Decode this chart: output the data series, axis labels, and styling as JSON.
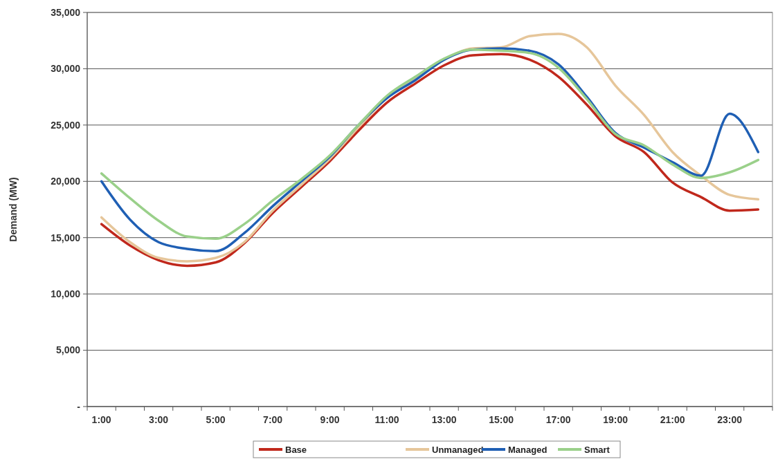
{
  "chart_data": {
    "type": "line",
    "ylabel": "Demand (MW)",
    "categories": [
      "1:00",
      null,
      "3:00",
      null,
      "5:00",
      null,
      "7:00",
      null,
      "9:00",
      null,
      "11:00",
      null,
      "13:00",
      null,
      "15:00",
      null,
      "17:00",
      null,
      "19:00",
      null,
      "21:00",
      null,
      "23:00",
      null
    ],
    "ylim": [
      0,
      35000
    ],
    "yticks": [
      {
        "value": 0,
        "label": "-"
      },
      {
        "value": 5000,
        "label": "5,000"
      },
      {
        "value": 10000,
        "label": "10,000"
      },
      {
        "value": 15000,
        "label": "15,000"
      },
      {
        "value": 20000,
        "label": "20,000"
      },
      {
        "value": 25000,
        "label": "25,000"
      },
      {
        "value": 30000,
        "label": "30,000"
      },
      {
        "value": 35000,
        "label": "35,000"
      }
    ],
    "grid": "y",
    "legend": "bottom",
    "marker": "none",
    "line_style": "solid",
    "series": [
      {
        "name": "Base",
        "color": "#c0281c",
        "values": [
          16200,
          14300,
          13000,
          12500,
          12800,
          14500,
          17200,
          19500,
          21800,
          24500,
          27000,
          28700,
          30300,
          31200,
          31300,
          30800,
          29300,
          26800,
          24000,
          22600,
          19900,
          18600,
          17400,
          17500
        ]
      },
      {
        "name": "Unmanaged",
        "color": "#e6c69a",
        "values": [
          16800,
          14600,
          13200,
          12900,
          13200,
          14600,
          17400,
          19700,
          22000,
          24800,
          27400,
          29100,
          30800,
          31800,
          31900,
          32900,
          33100,
          31900,
          28500,
          25900,
          22600,
          20500,
          18800,
          18400
        ]
      },
      {
        "name": "Managed",
        "color": "#1f5fb4",
        "values": [
          20000,
          16600,
          14600,
          14000,
          13800,
          15400,
          17800,
          20000,
          22200,
          25000,
          27400,
          29000,
          30800,
          31700,
          31800,
          31600,
          30400,
          27500,
          24300,
          23000,
          21700,
          20500,
          26000,
          22600
        ]
      },
      {
        "name": "Smart",
        "color": "#9ad08a",
        "values": [
          20700,
          18500,
          16500,
          15100,
          14900,
          16200,
          18300,
          20200,
          22300,
          25000,
          27600,
          29300,
          30900,
          31700,
          31600,
          31400,
          30100,
          27300,
          24200,
          23200,
          21500,
          20300,
          20800,
          21900
        ]
      }
    ]
  }
}
